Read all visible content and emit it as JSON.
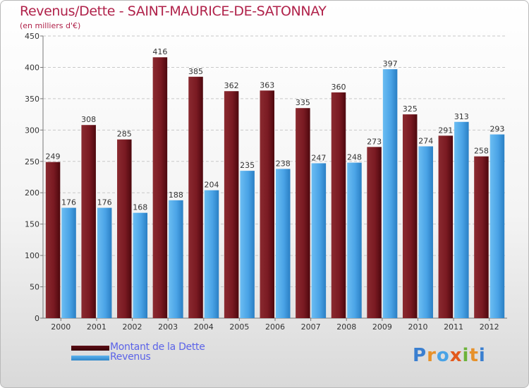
{
  "title": "Revenus/Dette - SAINT-MAURICE-DE-SATONNAY",
  "subtitle": "(en milliers d'€)",
  "brand": "Proxiti",
  "colors": {
    "dette": "#7a1a22",
    "revenus": "#4aa3e6",
    "title": "#b0224a",
    "legend_text": "#5b63e8"
  },
  "chart_data": {
    "type": "bar",
    "categories": [
      "2000",
      "2001",
      "2002",
      "2003",
      "2004",
      "2005",
      "2006",
      "2007",
      "2008",
      "2009",
      "2010",
      "2011",
      "2012"
    ],
    "series": [
      {
        "name": "Montant de la Dette",
        "values": [
          249,
          308,
          285,
          416,
          385,
          362,
          363,
          335,
          360,
          273,
          325,
          291,
          258
        ]
      },
      {
        "name": "Revenus",
        "values": [
          176,
          176,
          168,
          188,
          204,
          235,
          238,
          247,
          248,
          397,
          274,
          313,
          293
        ]
      }
    ],
    "yticks": [
      0,
      50,
      100,
      150,
      200,
      250,
      300,
      350,
      400,
      450
    ],
    "ylim": [
      0,
      450
    ],
    "grid": "horizontal dashed",
    "legend_position": "bottom-left",
    "title": "Revenus/Dette - SAINT-MAURICE-DE-SATONNAY",
    "ylabel": "(en milliers d'€)",
    "xlabel": ""
  }
}
